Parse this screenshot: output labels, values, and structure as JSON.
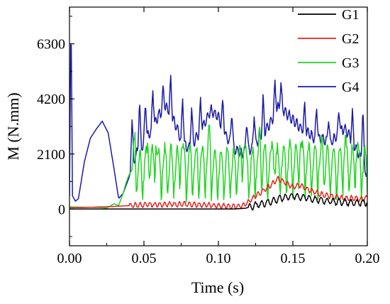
{
  "chart_data": {
    "type": "line",
    "xlabel": "Time (s)",
    "ylabel": "M (N.mm)",
    "xlim": [
      0.0,
      0.2
    ],
    "ylim": [
      -1400,
      7700
    ],
    "x_ticks": [
      "0.00",
      "0.05",
      "0.10",
      "0.15",
      "0.20"
    ],
    "y_ticks": [
      "0",
      "2100",
      "4200",
      "6300"
    ],
    "x_tick_values": [
      0.0,
      0.05,
      0.1,
      0.15,
      0.2
    ],
    "y_tick_values": [
      0,
      2100,
      4200,
      6300
    ],
    "legend_position": "top-right",
    "grid": false,
    "series": [
      {
        "name": "G1",
        "color": "#000000",
        "points": [
          [
            0.0,
            0
          ],
          [
            0.11,
            0
          ],
          [
            0.118,
            30
          ],
          [
            0.12,
            60
          ],
          [
            0.125,
            150
          ],
          [
            0.13,
            210
          ],
          [
            0.135,
            280
          ],
          [
            0.14,
            380
          ],
          [
            0.145,
            450
          ],
          [
            0.15,
            500
          ],
          [
            0.155,
            460
          ],
          [
            0.16,
            420
          ],
          [
            0.165,
            360
          ],
          [
            0.17,
            330
          ],
          [
            0.175,
            300
          ],
          [
            0.18,
            280
          ],
          [
            0.185,
            260
          ],
          [
            0.19,
            250
          ],
          [
            0.195,
            250
          ],
          [
            0.2,
            260
          ]
        ],
        "oscillation": {
          "amplitude": 120,
          "period": 0.004,
          "from": 0.12
        }
      },
      {
        "name": "G2",
        "color": "#e8231d",
        "points": [
          [
            0.0,
            50
          ],
          [
            0.01,
            60
          ],
          [
            0.02,
            80
          ],
          [
            0.03,
            100
          ],
          [
            0.04,
            130
          ],
          [
            0.05,
            160
          ],
          [
            0.06,
            170
          ],
          [
            0.07,
            180
          ],
          [
            0.08,
            180
          ],
          [
            0.09,
            160
          ],
          [
            0.1,
            120
          ],
          [
            0.11,
            100
          ],
          [
            0.115,
            120
          ],
          [
            0.12,
            250
          ],
          [
            0.125,
            500
          ],
          [
            0.13,
            700
          ],
          [
            0.135,
            900
          ],
          [
            0.14,
            1150
          ],
          [
            0.145,
            1000
          ],
          [
            0.15,
            850
          ],
          [
            0.155,
            900
          ],
          [
            0.16,
            750
          ],
          [
            0.165,
            650
          ],
          [
            0.17,
            550
          ],
          [
            0.175,
            500
          ],
          [
            0.18,
            450
          ],
          [
            0.185,
            400
          ],
          [
            0.19,
            420
          ],
          [
            0.195,
            380
          ],
          [
            0.2,
            420
          ]
        ],
        "oscillation": {
          "amplitude": 90,
          "period": 0.0033,
          "from": 0.04
        }
      },
      {
        "name": "G3",
        "color": "#1ed51e",
        "points": [
          [
            0.0,
            80
          ],
          [
            0.01,
            70
          ],
          [
            0.02,
            60
          ],
          [
            0.025,
            40
          ],
          [
            0.03,
            200
          ],
          [
            0.033,
            130
          ],
          [
            0.036,
            600
          ],
          [
            0.038,
            1000
          ],
          [
            0.04,
            1300
          ],
          [
            0.042,
            1500
          ],
          [
            0.05,
            1650
          ],
          [
            0.06,
            1700
          ],
          [
            0.07,
            1750
          ],
          [
            0.08,
            1700
          ],
          [
            0.09,
            1750
          ],
          [
            0.1,
            1700
          ],
          [
            0.11,
            1650
          ],
          [
            0.115,
            1700
          ],
          [
            0.12,
            1600
          ],
          [
            0.125,
            1700
          ],
          [
            0.13,
            1800
          ],
          [
            0.14,
            1750
          ],
          [
            0.15,
            1850
          ],
          [
            0.16,
            1800
          ],
          [
            0.17,
            1800
          ],
          [
            0.18,
            1750
          ],
          [
            0.19,
            1800
          ],
          [
            0.2,
            1700
          ]
        ],
        "oscillation": {
          "amplitude": 650,
          "period": 0.0042,
          "from": 0.042
        },
        "spikes": [
          [
            0.044,
            1200
          ],
          [
            0.053,
            1150
          ],
          [
            0.058,
            1300
          ],
          [
            0.075,
            1100
          ],
          [
            0.094,
            1200
          ],
          [
            0.117,
            1450
          ],
          [
            0.128,
            1300
          ],
          [
            0.137,
            1150
          ],
          [
            0.155,
            900
          ],
          [
            0.17,
            800
          ],
          [
            0.185,
            700
          ],
          [
            0.193,
            800
          ]
        ]
      },
      {
        "name": "G4",
        "color": "#1a1aa6",
        "points": [
          [
            0.0,
            500
          ],
          [
            0.001,
            7700
          ],
          [
            0.002,
            500
          ],
          [
            0.004,
            300
          ],
          [
            0.006,
            400
          ],
          [
            0.01,
            1800
          ],
          [
            0.014,
            2700
          ],
          [
            0.018,
            3050
          ],
          [
            0.022,
            3350
          ],
          [
            0.026,
            2900
          ],
          [
            0.03,
            1500
          ],
          [
            0.033,
            400
          ],
          [
            0.036,
            600
          ],
          [
            0.04,
            1200
          ],
          [
            0.042,
            1700
          ],
          [
            0.045,
            2100
          ],
          [
            0.05,
            2500
          ],
          [
            0.055,
            3000
          ],
          [
            0.06,
            3600
          ],
          [
            0.065,
            3900
          ],
          [
            0.07,
            3400
          ],
          [
            0.075,
            2600
          ],
          [
            0.08,
            2300
          ],
          [
            0.085,
            2700
          ],
          [
            0.09,
            3200
          ],
          [
            0.095,
            3800
          ],
          [
            0.1,
            3500
          ],
          [
            0.105,
            2800
          ],
          [
            0.11,
            2300
          ],
          [
            0.115,
            2100
          ],
          [
            0.12,
            2200
          ],
          [
            0.125,
            2500
          ],
          [
            0.13,
            2900
          ],
          [
            0.135,
            3300
          ],
          [
            0.14,
            3900
          ],
          [
            0.145,
            3700
          ],
          [
            0.15,
            3400
          ],
          [
            0.155,
            3100
          ],
          [
            0.16,
            2900
          ],
          [
            0.165,
            2700
          ],
          [
            0.17,
            2700
          ],
          [
            0.175,
            2500
          ],
          [
            0.18,
            2800
          ],
          [
            0.185,
            3100
          ],
          [
            0.19,
            2600
          ],
          [
            0.195,
            2000
          ],
          [
            0.2,
            1300
          ]
        ],
        "oscillation": {
          "amplitude": 180,
          "period": 0.0025,
          "from": 0.042
        },
        "spikes": [
          [
            0.042,
            1700
          ],
          [
            0.047,
            1900
          ],
          [
            0.051,
            1600
          ],
          [
            0.056,
            1500
          ],
          [
            0.063,
            900
          ],
          [
            0.068,
            1400
          ],
          [
            0.076,
            1800
          ],
          [
            0.082,
            1400
          ],
          [
            0.088,
            1200
          ],
          [
            0.103,
            1100
          ],
          [
            0.109,
            1400
          ],
          [
            0.119,
            1300
          ],
          [
            0.124,
            1200
          ],
          [
            0.13,
            1300
          ],
          [
            0.138,
            1200
          ],
          [
            0.142,
            1000
          ],
          [
            0.158,
            1000
          ],
          [
            0.166,
            1200
          ],
          [
            0.174,
            1000
          ],
          [
            0.181,
            1000
          ],
          [
            0.19,
            1100
          ],
          [
            0.197,
            2200
          ]
        ]
      }
    ]
  }
}
